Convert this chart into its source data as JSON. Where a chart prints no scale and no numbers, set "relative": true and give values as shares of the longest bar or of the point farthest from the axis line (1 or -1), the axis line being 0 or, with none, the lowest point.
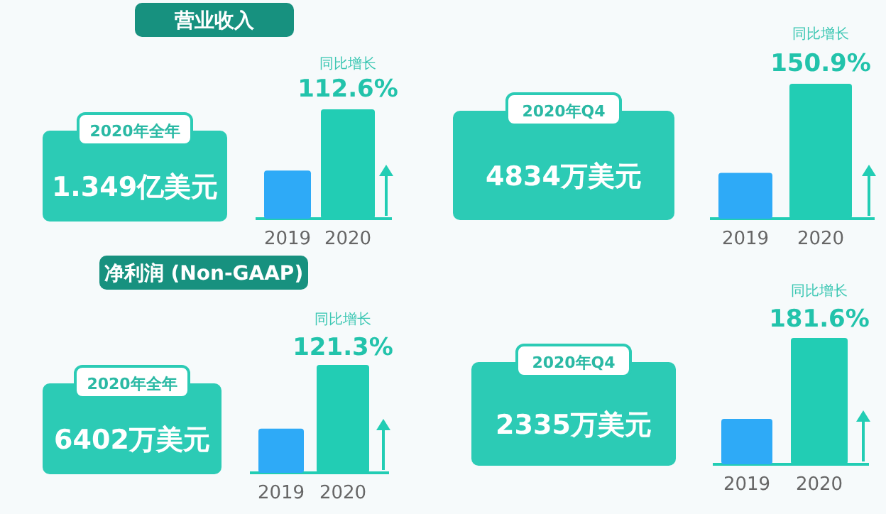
{
  "chart_data": [
    {
      "type": "bar",
      "relative": true,
      "title": "营业收入",
      "categories": [
        "2019",
        "2020"
      ],
      "values": [
        0.44,
        1
      ],
      "colors": [
        "#2eaaf7",
        "#22cdb4"
      ],
      "annotations": [
        "2020年全年",
        "1.349亿美元",
        "同比增长",
        "112.6%"
      ]
    },
    {
      "type": "bar",
      "relative": true,
      "categories": [
        "2019",
        "2020"
      ],
      "values": [
        0.34,
        1
      ],
      "colors": [
        "#2eaaf7",
        "#22cdb4"
      ],
      "annotations": [
        "2020年Q4",
        "4834万美元",
        "同比增长",
        "150.9%"
      ]
    },
    {
      "type": "bar",
      "relative": true,
      "title": "净利润 (Non-GAAP)",
      "categories": [
        "2019",
        "2020"
      ],
      "values": [
        0.41,
        1
      ],
      "colors": [
        "#2eaaf7",
        "#22cdb4"
      ],
      "annotations": [
        "2020年全年",
        "6402万美元",
        "同比增长",
        "121.3%"
      ]
    },
    {
      "type": "bar",
      "relative": true,
      "categories": [
        "2019",
        "2020"
      ],
      "values": [
        0.36,
        1
      ],
      "colors": [
        "#2eaaf7",
        "#22cdb4"
      ],
      "annotations": [
        "2020年Q4",
        "2335万美元",
        "同比增长",
        "181.6%"
      ]
    }
  ]
}
